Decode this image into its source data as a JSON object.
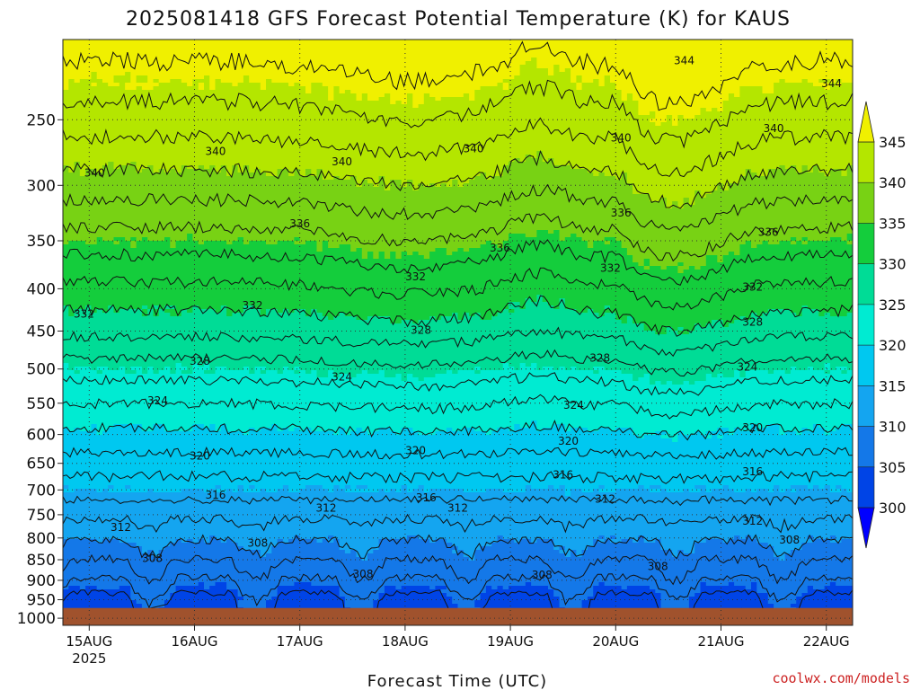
{
  "chart_data": {
    "type": "heatmap",
    "title": "2025081418 GFS Forecast Potential Temperature (K) for KAUS",
    "xlabel": "Forecast Time (UTC)",
    "ylabel": "",
    "x_ticks": [
      {
        "label": "15AUG",
        "sublabel": "2025",
        "day": 0.25
      },
      {
        "label": "16AUG",
        "sublabel": "",
        "day": 1.25
      },
      {
        "label": "17AUG",
        "sublabel": "",
        "day": 2.25
      },
      {
        "label": "18AUG",
        "sublabel": "",
        "day": 3.25
      },
      {
        "label": "19AUG",
        "sublabel": "",
        "day": 4.25
      },
      {
        "label": "20AUG",
        "sublabel": "",
        "day": 5.25
      },
      {
        "label": "21AUG",
        "sublabel": "",
        "day": 6.25
      },
      {
        "label": "22AUG",
        "sublabel": "",
        "day": 7.25
      }
    ],
    "xlim_days": [
      0,
      7.5
    ],
    "y_ticks": [
      250,
      300,
      350,
      400,
      450,
      500,
      550,
      600,
      650,
      700,
      750,
      800,
      850,
      900,
      950,
      1000
    ],
    "ylim_hpa": [
      1020,
      200
    ],
    "y_scale": "log-pressure",
    "grid": true,
    "surface_pressure_hpa": 972,
    "surface_color": "#a0522d",
    "colorbar": {
      "levels": [
        300,
        305,
        310,
        315,
        320,
        325,
        330,
        335,
        340,
        345
      ],
      "labels": [
        "345",
        "340",
        "335",
        "330",
        "325",
        "320",
        "315",
        "310",
        "305",
        "300"
      ],
      "colors": [
        "#0000ff",
        "#0044e6",
        "#1478e8",
        "#14a5f0",
        "#00c8f0",
        "#00ebd2",
        "#00dc96",
        "#14cd3c",
        "#78d214",
        "#b4e600",
        "#f0f000"
      ],
      "extend": "both"
    },
    "theta_profile": {
      "pressure_hpa": [
        1000,
        950,
        900,
        850,
        800,
        750,
        700,
        650,
        600,
        550,
        500,
        450,
        400,
        350,
        300,
        250,
        200
      ],
      "theta_k": [
        303,
        304,
        306.5,
        308.5,
        310.5,
        312.5,
        315,
        317,
        319.5,
        322,
        325,
        328.5,
        331.5,
        335,
        339,
        343,
        347
      ]
    },
    "contour_interval_k": 2,
    "contour_labels": [
      {
        "text": "344",
        "day": 5.9,
        "p": 212
      },
      {
        "text": "344",
        "day": 7.3,
        "p": 226
      },
      {
        "text": "340",
        "day": 0.3,
        "p": 290
      },
      {
        "text": "340",
        "day": 1.45,
        "p": 273
      },
      {
        "text": "340",
        "day": 2.65,
        "p": 281
      },
      {
        "text": "340",
        "day": 3.9,
        "p": 271
      },
      {
        "text": "340",
        "day": 5.3,
        "p": 263
      },
      {
        "text": "340",
        "day": 6.75,
        "p": 256
      },
      {
        "text": "336",
        "day": 2.25,
        "p": 334
      },
      {
        "text": "336",
        "day": 4.15,
        "p": 357
      },
      {
        "text": "336",
        "day": 5.3,
        "p": 324
      },
      {
        "text": "336",
        "day": 6.7,
        "p": 342
      },
      {
        "text": "332",
        "day": 0.2,
        "p": 429
      },
      {
        "text": "332",
        "day": 1.8,
        "p": 419
      },
      {
        "text": "332",
        "day": 3.35,
        "p": 387
      },
      {
        "text": "332",
        "day": 5.2,
        "p": 378
      },
      {
        "text": "332",
        "day": 6.55,
        "p": 398
      },
      {
        "text": "328",
        "day": 1.3,
        "p": 489
      },
      {
        "text": "328",
        "day": 3.4,
        "p": 449
      },
      {
        "text": "328",
        "day": 5.1,
        "p": 485
      },
      {
        "text": "328",
        "day": 6.55,
        "p": 439
      },
      {
        "text": "324",
        "day": 0.9,
        "p": 546
      },
      {
        "text": "324",
        "day": 2.65,
        "p": 511
      },
      {
        "text": "324",
        "day": 4.85,
        "p": 553
      },
      {
        "text": "324",
        "day": 6.5,
        "p": 497
      },
      {
        "text": "320",
        "day": 1.3,
        "p": 637
      },
      {
        "text": "320",
        "day": 3.35,
        "p": 627
      },
      {
        "text": "320",
        "day": 4.8,
        "p": 611
      },
      {
        "text": "320",
        "day": 6.55,
        "p": 589
      },
      {
        "text": "316",
        "day": 1.45,
        "p": 710
      },
      {
        "text": "316",
        "day": 3.45,
        "p": 715
      },
      {
        "text": "316",
        "day": 4.75,
        "p": 671
      },
      {
        "text": "316",
        "day": 6.55,
        "p": 665
      },
      {
        "text": "312",
        "day": 0.55,
        "p": 777
      },
      {
        "text": "312",
        "day": 2.5,
        "p": 736
      },
      {
        "text": "312",
        "day": 3.75,
        "p": 736
      },
      {
        "text": "312",
        "day": 5.15,
        "p": 718
      },
      {
        "text": "312",
        "day": 6.55,
        "p": 763
      },
      {
        "text": "308",
        "day": 0.85,
        "p": 847
      },
      {
        "text": "308",
        "day": 1.85,
        "p": 812
      },
      {
        "text": "308",
        "day": 2.85,
        "p": 885
      },
      {
        "text": "308",
        "day": 4.55,
        "p": 887
      },
      {
        "text": "308",
        "day": 5.65,
        "p": 866
      },
      {
        "text": "308",
        "day": 6.9,
        "p": 804
      }
    ],
    "credit": "coolwx.com/models"
  }
}
